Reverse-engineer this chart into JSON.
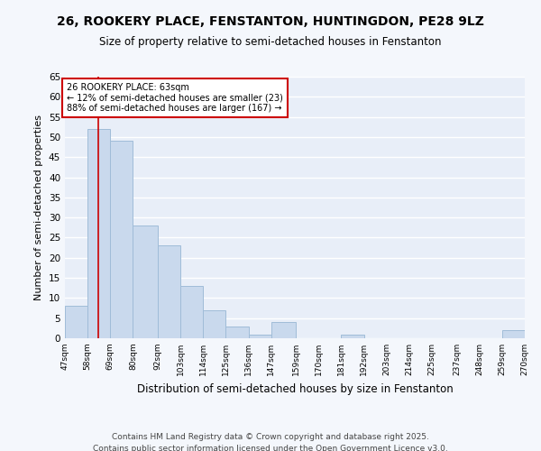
{
  "title1": "26, ROOKERY PLACE, FENSTANTON, HUNTINGDON, PE28 9LZ",
  "title2": "Size of property relative to semi-detached houses in Fenstanton",
  "bin_edges": [
    47,
    58,
    69,
    80,
    92,
    103,
    114,
    125,
    136,
    147,
    159,
    170,
    181,
    192,
    203,
    214,
    225,
    237,
    248,
    259,
    270
  ],
  "values": [
    8,
    52,
    49,
    28,
    23,
    13,
    7,
    3,
    1,
    4,
    0,
    0,
    1,
    0,
    0,
    0,
    0,
    0,
    0,
    2
  ],
  "bar_color": "#c9d9ed",
  "bar_edge_color": "#a0bcd8",
  "property_line_x": 63,
  "property_line_color": "#cc0000",
  "xlabel": "Distribution of semi-detached houses by size in Fenstanton",
  "ylabel": "Number of semi-detached properties",
  "annotation_title": "26 ROOKERY PLACE: 63sqm",
  "annotation_line1": "← 12% of semi-detached houses are smaller (23)",
  "annotation_line2": "88% of semi-detached houses are larger (167) →",
  "annotation_box_color": "#cc0000",
  "ylim": [
    0,
    65
  ],
  "yticks": [
    0,
    5,
    10,
    15,
    20,
    25,
    30,
    35,
    40,
    45,
    50,
    55,
    60,
    65
  ],
  "footer1": "Contains HM Land Registry data © Crown copyright and database right 2025.",
  "footer2": "Contains public sector information licensed under the Open Government Licence v3.0.",
  "bg_color": "#f4f7fc",
  "plot_bg_color": "#e8eef8",
  "grid_color": "#ffffff",
  "tick_labels": [
    "47sqm",
    "58sqm",
    "69sqm",
    "80sqm",
    "92sqm",
    "103sqm",
    "114sqm",
    "125sqm",
    "136sqm",
    "147sqm",
    "159sqm",
    "170sqm",
    "181sqm",
    "192sqm",
    "203sqm",
    "214sqm",
    "225sqm",
    "237sqm",
    "248sqm",
    "259sqm",
    "270sqm"
  ]
}
